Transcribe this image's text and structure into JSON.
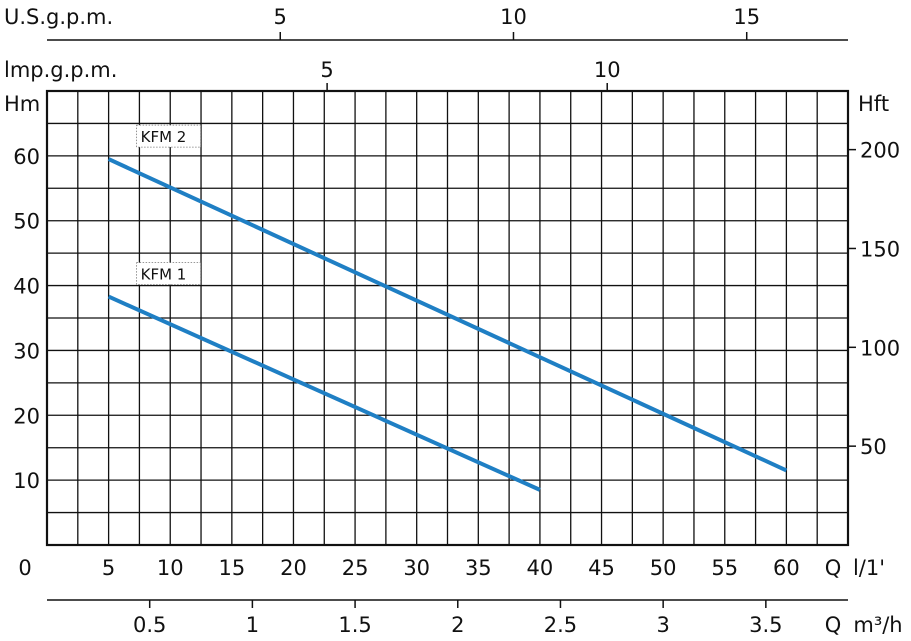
{
  "chart_data": {
    "type": "line",
    "colors": {
      "series": "#1f7fc4",
      "grid": "#111111"
    },
    "grid": true,
    "x": {
      "name": "Q l/1'",
      "label_q": "Q",
      "label_unit": "l/1'",
      "origin_label": "0",
      "range": [
        0,
        65
      ],
      "ticks": [
        5,
        10,
        15,
        20,
        25,
        30,
        35,
        40,
        45,
        50,
        55,
        60
      ]
    },
    "y": {
      "name": "Hm",
      "range": [
        0,
        70
      ],
      "ticks": [
        10,
        20,
        30,
        40,
        50,
        60
      ]
    },
    "y_right": {
      "name": "Hft",
      "ticks": [
        50,
        100,
        150,
        200
      ]
    },
    "top_axis_us": {
      "name": "U.S.g.p.m.",
      "ticks": [
        5,
        10,
        15
      ]
    },
    "top_axis_imp": {
      "name": "lmp.g.p.m.",
      "ticks": [
        5,
        10
      ]
    },
    "bottom_axis_m3h": {
      "label_q": "Q",
      "label_unit": "m³/h",
      "ticks": [
        "0.5",
        "1",
        "1.5",
        "2",
        "2.5",
        "3",
        "3.5"
      ]
    },
    "series": [
      {
        "name": "KFM 2",
        "x": [
          5,
          60
        ],
        "y": [
          59.5,
          11.5
        ]
      },
      {
        "name": "KFM 1",
        "x": [
          5,
          40
        ],
        "y": [
          38.3,
          8.5
        ]
      }
    ]
  }
}
